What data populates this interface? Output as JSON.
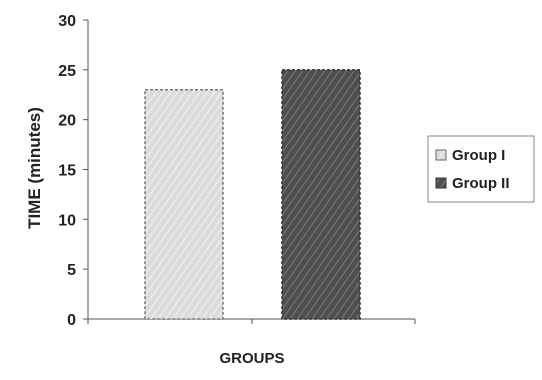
{
  "chart_data": {
    "type": "bar",
    "categories": [
      "Group I",
      "Group II"
    ],
    "series": [
      {
        "name": "Group I",
        "values": [
          23,
          null
        ],
        "color": "#d6d6d6"
      },
      {
        "name": "Group II",
        "values": [
          null,
          25
        ],
        "color": "#555555"
      }
    ],
    "xlabel": "GROUPS",
    "ylabel": "TIME (minutes)",
    "ylim": [
      0,
      30
    ],
    "yticks": [
      "0",
      "5",
      "10",
      "15",
      "20",
      "25",
      "30"
    ],
    "grid": false,
    "legend_position": "right",
    "legend": [
      "Group I",
      "Group II"
    ]
  }
}
